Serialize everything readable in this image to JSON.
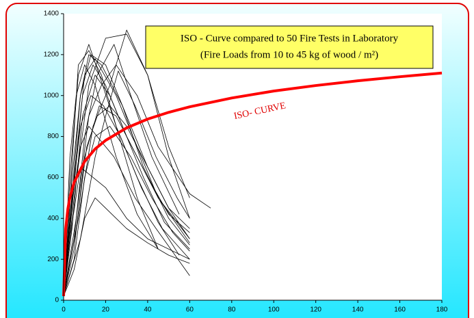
{
  "chart_data": {
    "type": "line",
    "title": [
      "ISO - Curve compared to 50 Fire Tests in Laboratory",
      "(Fire Loads from 10 to 45 kg of wood / m²)"
    ],
    "annotation": "ISO- CURVE",
    "xlim": [
      0,
      180
    ],
    "xticks": [
      0,
      20,
      40,
      60,
      80,
      100,
      120,
      140,
      160,
      180
    ],
    "ylim": [
      0,
      1400
    ],
    "yticks": [
      0,
      200,
      400,
      600,
      800,
      1000,
      1200,
      1400
    ],
    "series": [
      {
        "color": "#000000",
        "line_width": 0.8,
        "x": [
          0,
          3,
          8,
          13,
          20,
          30,
          40,
          50,
          60
        ],
        "values": [
          20,
          400,
          1000,
          1200,
          1150,
          900,
          650,
          450,
          300
        ]
      },
      {
        "color": "#000000",
        "line_width": 0.8,
        "x": [
          0,
          5,
          10,
          15,
          25,
          35,
          45,
          60
        ],
        "values": [
          20,
          600,
          1100,
          1180,
          1000,
          750,
          500,
          280
        ]
      },
      {
        "color": "#000000",
        "line_width": 0.8,
        "x": [
          0,
          5,
          12,
          20,
          30,
          40,
          50,
          60
        ],
        "values": [
          20,
          500,
          1050,
          1280,
          1300,
          1100,
          700,
          400
        ]
      },
      {
        "color": "#000000",
        "line_width": 0.8,
        "x": [
          0,
          3,
          7,
          12,
          18,
          25,
          35,
          45
        ],
        "values": [
          20,
          500,
          1150,
          1220,
          1100,
          850,
          500,
          250
        ]
      },
      {
        "color": "#000000",
        "line_width": 0.8,
        "x": [
          0,
          4,
          9,
          15,
          22,
          30,
          40,
          50,
          60
        ],
        "values": [
          20,
          350,
          900,
          1100,
          1000,
          800,
          600,
          420,
          330
        ]
      },
      {
        "color": "#000000",
        "line_width": 0.8,
        "x": [
          0,
          5,
          10,
          17,
          25,
          35,
          45,
          60
        ],
        "values": [
          20,
          250,
          700,
          950,
          900,
          700,
          500,
          300
        ]
      },
      {
        "color": "#000000",
        "line_width": 0.8,
        "x": [
          0,
          6,
          12,
          18,
          25,
          35,
          45,
          60,
          70
        ],
        "values": [
          20,
          400,
          900,
          1050,
          1150,
          1000,
          750,
          520,
          450
        ]
      },
      {
        "color": "#000000",
        "line_width": 0.8,
        "x": [
          0,
          3,
          8,
          14,
          20,
          30,
          40,
          60
        ],
        "values": [
          20,
          300,
          650,
          600,
          550,
          400,
          300,
          200
        ]
      },
      {
        "color": "#000000",
        "line_width": 0.8,
        "x": [
          0,
          5,
          10,
          15,
          20,
          30,
          40,
          50,
          60
        ],
        "values": [
          20,
          150,
          400,
          500,
          450,
          350,
          280,
          220,
          180
        ]
      },
      {
        "color": "#000000",
        "line_width": 0.8,
        "x": [
          0,
          3,
          6,
          10,
          15,
          25,
          35,
          45
        ],
        "values": [
          20,
          700,
          1000,
          1150,
          1050,
          700,
          420,
          250
        ]
      },
      {
        "color": "#000000",
        "line_width": 0.8,
        "x": [
          0,
          4,
          8,
          12,
          18,
          28,
          38,
          50,
          60
        ],
        "values": [
          20,
          600,
          1000,
          1200,
          1150,
          950,
          650,
          400,
          270
        ]
      },
      {
        "color": "#000000",
        "line_width": 0.8,
        "x": [
          0,
          5,
          10,
          16,
          24,
          32,
          42,
          55
        ],
        "values": [
          20,
          300,
          800,
          1100,
          1250,
          1000,
          700,
          420
        ]
      },
      {
        "color": "#000000",
        "line_width": 0.8,
        "x": [
          0,
          7,
          14,
          22,
          30,
          40,
          50,
          60
        ],
        "values": [
          20,
          400,
          850,
          1050,
          1320,
          1100,
          750,
          500
        ]
      },
      {
        "color": "#000000",
        "line_width": 0.8,
        "x": [
          0,
          4,
          9,
          14,
          20,
          28,
          38,
          48,
          60
        ],
        "values": [
          20,
          450,
          1000,
          1150,
          1050,
          850,
          600,
          380,
          250
        ]
      },
      {
        "color": "#000000",
        "line_width": 0.8,
        "x": [
          0,
          5,
          10,
          15,
          22,
          32,
          42,
          52,
          60
        ],
        "values": [
          20,
          200,
          600,
          800,
          850,
          700,
          500,
          330,
          240
        ]
      },
      {
        "color": "#000000",
        "line_width": 0.8,
        "x": [
          0,
          3,
          7,
          12,
          17,
          25,
          35,
          45,
          55
        ],
        "values": [
          20,
          600,
          1100,
          1250,
          1100,
          850,
          600,
          380,
          220
        ]
      },
      {
        "color": "#000000",
        "line_width": 0.8,
        "x": [
          0,
          6,
          11,
          16,
          22,
          30,
          40,
          50,
          60
        ],
        "values": [
          20,
          350,
          750,
          900,
          950,
          850,
          650,
          450,
          350
        ]
      },
      {
        "color": "#000000",
        "line_width": 0.8,
        "x": [
          0,
          4,
          8,
          13,
          19,
          27,
          37,
          47,
          60
        ],
        "values": [
          20,
          500,
          850,
          1000,
          950,
          800,
          550,
          350,
          200
        ]
      },
      {
        "color": "#000000",
        "line_width": 0.8,
        "x": [
          0,
          8,
          15,
          20,
          26,
          34,
          44,
          54,
          60
        ],
        "values": [
          20,
          300,
          700,
          900,
          1120,
          950,
          700,
          500,
          400
        ]
      },
      {
        "color": "#000000",
        "line_width": 0.8,
        "x": [
          0,
          3,
          8,
          12,
          16,
          24,
          34,
          44,
          60
        ],
        "values": [
          20,
          400,
          750,
          850,
          800,
          700,
          500,
          350,
          120
        ]
      },
      {
        "color": "#ff0000",
        "line_width": 4,
        "x": [
          0,
          1,
          2,
          3,
          5,
          10,
          15,
          20,
          30,
          40,
          50,
          60,
          80,
          100,
          120,
          140,
          160,
          180
        ],
        "values": [
          20,
          349,
          445,
          502,
          576,
          678,
          739,
          781,
          842,
          885,
          918,
          945,
          988,
          1022,
          1049,
          1072,
          1092,
          1110
        ]
      }
    ]
  }
}
